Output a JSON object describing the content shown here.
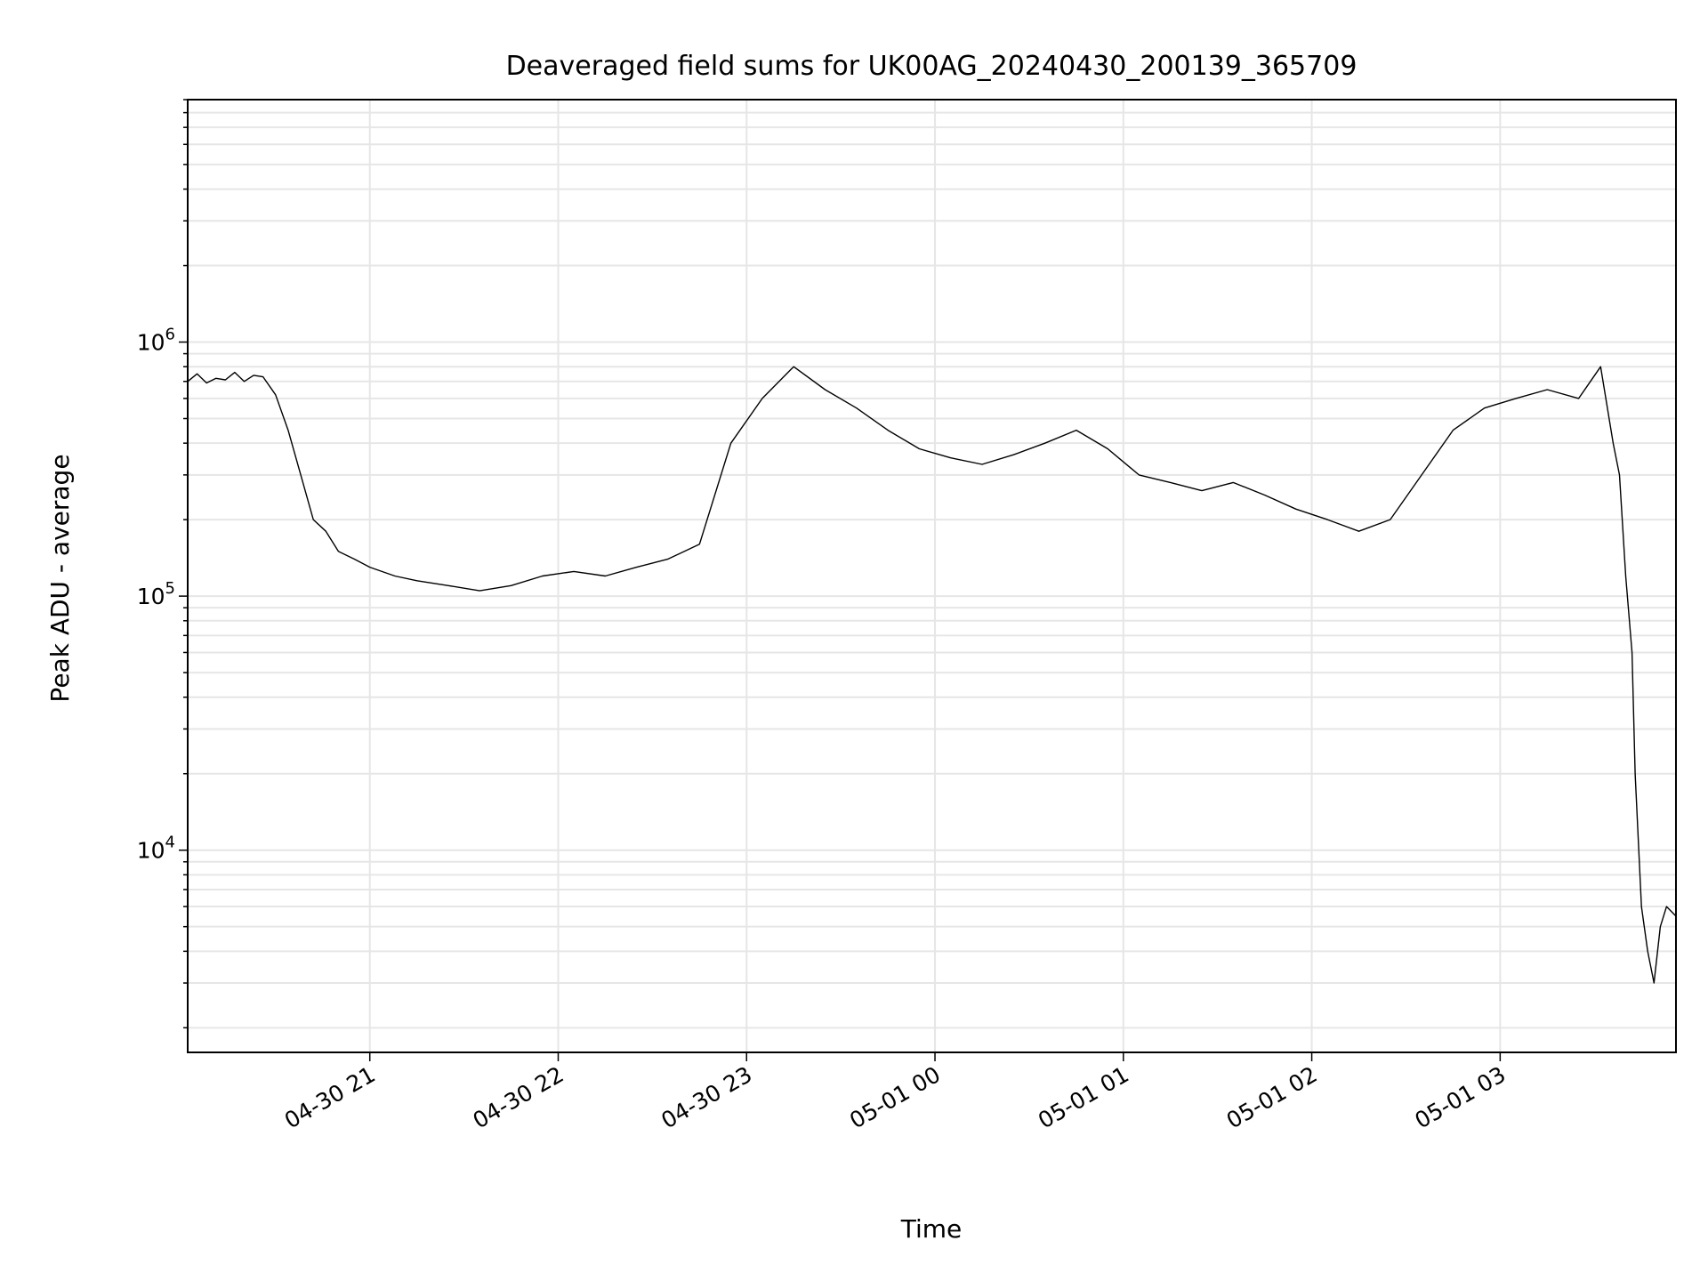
{
  "chart_data": {
    "type": "line",
    "title": "Deaveraged field sums for UK00AG_20240430_200139_365709",
    "xlabel": "Time",
    "ylabel": "Peak ADU - average",
    "yscale": "log",
    "ylim": [
      1600,
      9000000
    ],
    "xlim": [
      "2024-04-30 20:02",
      "2024-05-01 03:56"
    ],
    "grid": true,
    "x_ticks": [
      {
        "t": "2024-04-30 21:00",
        "label": "04-30 21"
      },
      {
        "t": "2024-04-30 22:00",
        "label": "04-30 22"
      },
      {
        "t": "2024-04-30 23:00",
        "label": "04-30 23"
      },
      {
        "t": "2024-05-01 00:00",
        "label": "05-01 00"
      },
      {
        "t": "2024-05-01 01:00",
        "label": "05-01 01"
      },
      {
        "t": "2024-05-01 02:00",
        "label": "05-01 02"
      },
      {
        "t": "2024-05-01 03:00",
        "label": "05-01 03"
      }
    ],
    "y_ticks": [
      {
        "v": 10000,
        "label": "10",
        "exp": "4"
      },
      {
        "v": 100000,
        "label": "10",
        "exp": "5"
      },
      {
        "v": 1000000,
        "label": "10",
        "exp": "6"
      }
    ],
    "line_color": "#000000",
    "series": [
      {
        "points": [
          [
            "2024-04-30 20:02",
            700000
          ],
          [
            "2024-04-30 20:05",
            750000
          ],
          [
            "2024-04-30 20:08",
            690000
          ],
          [
            "2024-04-30 20:11",
            720000
          ],
          [
            "2024-04-30 20:14",
            710000
          ],
          [
            "2024-04-30 20:17",
            760000
          ],
          [
            "2024-04-30 20:20",
            700000
          ],
          [
            "2024-04-30 20:23",
            740000
          ],
          [
            "2024-04-30 20:26",
            730000
          ],
          [
            "2024-04-30 20:30",
            620000
          ],
          [
            "2024-04-30 20:34",
            450000
          ],
          [
            "2024-04-30 20:38",
            300000
          ],
          [
            "2024-04-30 20:42",
            200000
          ],
          [
            "2024-04-30 20:46",
            180000
          ],
          [
            "2024-04-30 20:50",
            150000
          ],
          [
            "2024-04-30 20:55",
            140000
          ],
          [
            "2024-04-30 21:00",
            130000
          ],
          [
            "2024-04-30 21:08",
            120000
          ],
          [
            "2024-04-30 21:15",
            115000
          ],
          [
            "2024-04-30 21:25",
            110000
          ],
          [
            "2024-04-30 21:35",
            105000
          ],
          [
            "2024-04-30 21:45",
            110000
          ],
          [
            "2024-04-30 21:55",
            120000
          ],
          [
            "2024-04-30 22:05",
            125000
          ],
          [
            "2024-04-30 22:15",
            120000
          ],
          [
            "2024-04-30 22:25",
            130000
          ],
          [
            "2024-04-30 22:35",
            140000
          ],
          [
            "2024-04-30 22:45",
            160000
          ],
          [
            "2024-04-30 22:55",
            400000
          ],
          [
            "2024-04-30 23:05",
            600000
          ],
          [
            "2024-04-30 23:15",
            800000
          ],
          [
            "2024-04-30 23:25",
            650000
          ],
          [
            "2024-04-30 23:35",
            550000
          ],
          [
            "2024-04-30 23:45",
            450000
          ],
          [
            "2024-04-30 23:55",
            380000
          ],
          [
            "2024-05-01 00:05",
            350000
          ],
          [
            "2024-05-01 00:15",
            330000
          ],
          [
            "2024-05-01 00:25",
            360000
          ],
          [
            "2024-05-01 00:35",
            400000
          ],
          [
            "2024-05-01 00:45",
            450000
          ],
          [
            "2024-05-01 00:55",
            380000
          ],
          [
            "2024-05-01 01:05",
            300000
          ],
          [
            "2024-05-01 01:15",
            280000
          ],
          [
            "2024-05-01 01:25",
            260000
          ],
          [
            "2024-05-01 01:35",
            280000
          ],
          [
            "2024-05-01 01:45",
            250000
          ],
          [
            "2024-05-01 01:55",
            220000
          ],
          [
            "2024-05-01 02:05",
            200000
          ],
          [
            "2024-05-01 02:15",
            180000
          ],
          [
            "2024-05-01 02:25",
            200000
          ],
          [
            "2024-05-01 02:35",
            300000
          ],
          [
            "2024-05-01 02:45",
            450000
          ],
          [
            "2024-05-01 02:55",
            550000
          ],
          [
            "2024-05-01 03:05",
            600000
          ],
          [
            "2024-05-01 03:15",
            650000
          ],
          [
            "2024-05-01 03:25",
            600000
          ],
          [
            "2024-05-01 03:32",
            800000
          ],
          [
            "2024-05-01 03:36",
            400000
          ],
          [
            "2024-05-01 03:38",
            300000
          ],
          [
            "2024-05-01 03:40",
            120000
          ],
          [
            "2024-05-01 03:42",
            60000
          ],
          [
            "2024-05-01 03:43",
            20000
          ],
          [
            "2024-05-01 03:45",
            6000
          ],
          [
            "2024-05-01 03:47",
            4000
          ],
          [
            "2024-05-01 03:49",
            3000
          ],
          [
            "2024-05-01 03:51",
            5000
          ],
          [
            "2024-05-01 03:53",
            6000
          ],
          [
            "2024-05-01 03:56",
            5500
          ]
        ]
      }
    ]
  }
}
